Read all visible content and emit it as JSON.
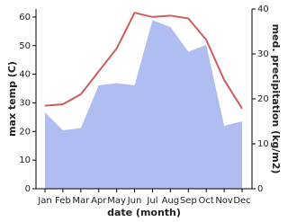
{
  "chart_data": {
    "type": "line",
    "categories": [
      "Jan",
      "Feb",
      "Mar",
      "Apr",
      "May",
      "Jun",
      "Jul",
      "Aug",
      "Sep",
      "Oct",
      "Nov",
      "Dec"
    ],
    "x_label": "date (month)",
    "y_label": "max temp (C)",
    "y2_label": "med. precipitation (kg/m2)",
    "ylim": [
      0,
      62.8
    ],
    "yticks": [
      0,
      10,
      20,
      30,
      40,
      50,
      60
    ],
    "y2lim": [
      0,
      40
    ],
    "y2ticks": [
      0,
      10,
      20,
      30,
      40
    ],
    "series": [
      {
        "name": "med. precipitation",
        "axis": "y2",
        "kind": "area",
        "color": "#b0bdf0",
        "values": [
          17,
          13,
          13.5,
          23,
          23.5,
          23,
          37.5,
          36,
          30.5,
          32,
          14,
          15
        ]
      },
      {
        "name": "max temp",
        "kind": "line",
        "color": "#cd5c5c",
        "values": [
          29,
          29.5,
          33,
          41,
          49,
          61.5,
          60,
          60.5,
          59.5,
          52,
          38,
          28
        ]
      }
    ]
  }
}
